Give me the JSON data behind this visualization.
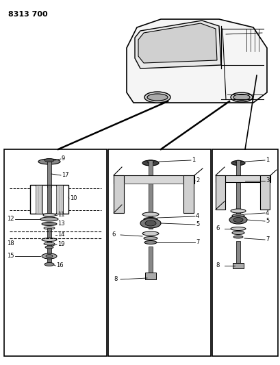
{
  "title": "8313 700",
  "bg_color": "#ffffff",
  "fig_width": 4.1,
  "fig_height": 5.33,
  "dpi": 100,
  "title_fontsize": 8,
  "title_fontweight": "bold"
}
